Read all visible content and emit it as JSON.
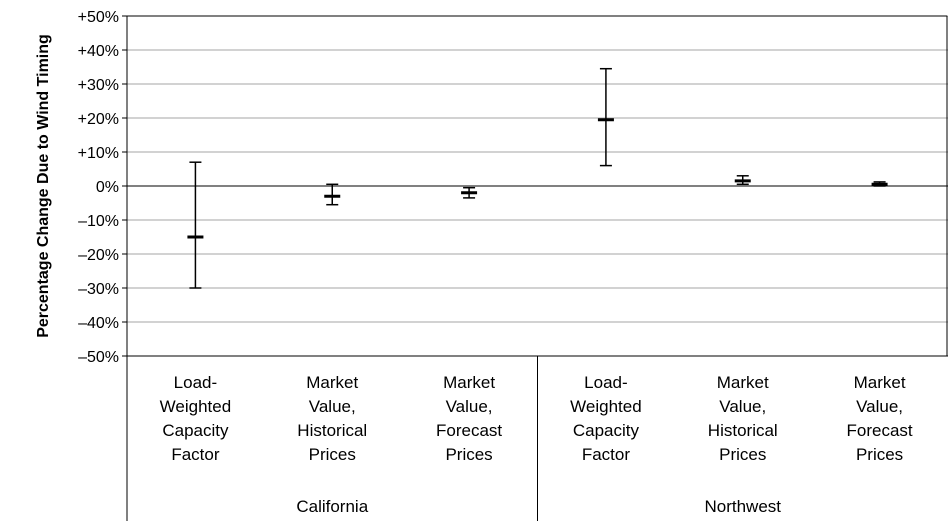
{
  "chart_data": {
    "type": "errorbar",
    "ylabel": "Percentage Change Due to Wind Timing",
    "ylim": [
      -50,
      50
    ],
    "yticks": [
      50,
      40,
      30,
      20,
      10,
      0,
      -10,
      -20,
      -30,
      -40,
      -50
    ],
    "ytick_labels": [
      "+50%",
      "+40%",
      "+30%",
      "+20%",
      "+10%",
      "0%",
      "–10%",
      "–20%",
      "–30%",
      "–40%",
      "–50%"
    ],
    "grid": true,
    "groups": [
      {
        "name": "California",
        "categories": [
          {
            "label": [
              "Load-",
              "Weighted",
              "Capacity",
              "Factor"
            ],
            "low": -30,
            "mid": -15,
            "high": 7
          },
          {
            "label": [
              "Market",
              "Value,",
              "Historical",
              "Prices"
            ],
            "low": -5.5,
            "mid": -3,
            "high": 0.5
          },
          {
            "label": [
              "Market",
              "Value,",
              "Forecast",
              "Prices"
            ],
            "low": -3.5,
            "mid": -2,
            "high": -0.5
          }
        ]
      },
      {
        "name": "Northwest",
        "categories": [
          {
            "label": [
              "Load-",
              "Weighted",
              "Capacity",
              "Factor"
            ],
            "low": 6,
            "mid": 19.5,
            "high": 34.5
          },
          {
            "label": [
              "Market",
              "Value,",
              "Historical",
              "Prices"
            ],
            "low": 0.5,
            "mid": 1.5,
            "high": 3
          },
          {
            "label": [
              "Market",
              "Value,",
              "Forecast",
              "Prices"
            ],
            "low": 0,
            "mid": 0.5,
            "high": 1.2
          }
        ]
      }
    ]
  }
}
